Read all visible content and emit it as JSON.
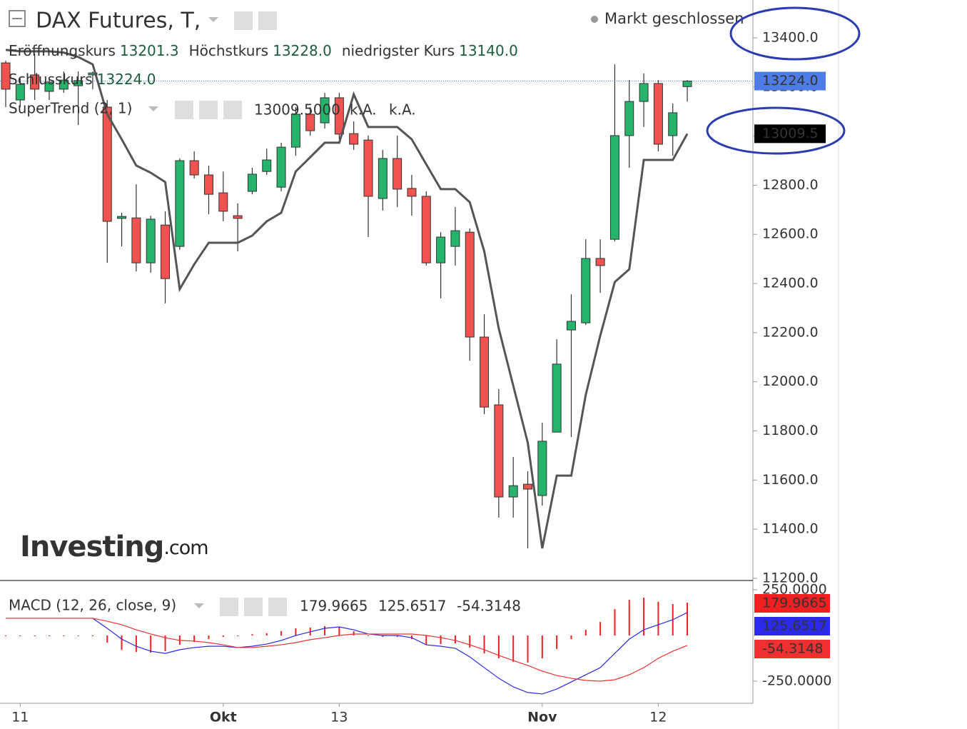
{
  "header": {
    "title": "DAX Futures, T,",
    "status": "Markt geschlossen",
    "ohlc": [
      {
        "label": "Eröffnungskurs",
        "value": "13201.3"
      },
      {
        "label": "Höchstkurs",
        "value": "13228.0"
      },
      {
        "label": "niedrigster Kurs",
        "value": "13140.0"
      },
      {
        "label": "Schlusskurs",
        "value": "13224.0"
      }
    ],
    "logo": {
      "brand": "Investing",
      "suffix": ".com"
    }
  },
  "chart_data": [
    {
      "type": "candlestick",
      "categories": [
        null,
        "11",
        null,
        null,
        null,
        null,
        null,
        null,
        null,
        null,
        null,
        null,
        null,
        null,
        null,
        "Okt",
        null,
        null,
        null,
        null,
        null,
        null,
        null,
        "13",
        null,
        null,
        null,
        null,
        null,
        null,
        null,
        null,
        null,
        null,
        null,
        null,
        null,
        "Nov",
        null,
        null,
        null,
        null,
        null,
        null,
        null,
        "12",
        null,
        null
      ],
      "open": [
        13298,
        13147,
        13249,
        13182,
        13191,
        13205,
        13249,
        13118,
        12665,
        12667,
        12484,
        12638,
        12551,
        12900,
        12842,
        12769,
        12676,
        12775,
        12856,
        12792,
        12955,
        13089,
        13054,
        13156,
        13010,
        12984,
        12746,
        12909,
        12787,
        12755,
        12484,
        12551,
        12609,
        12182,
        11906,
        11531,
        11583,
        11537,
        11795,
        12211,
        12240,
        12502,
        12580,
        13002,
        13141,
        13214,
        13002,
        13201.3
      ],
      "high": [
        13307,
        13234,
        13336,
        13240,
        13263,
        13263,
        13263,
        13147,
        12688,
        12804,
        12676,
        12694,
        12909,
        12938,
        12880,
        12856,
        12726,
        12871,
        12949,
        12973,
        13118,
        13118,
        13176,
        13176,
        13060,
        13002,
        12944,
        13002,
        12842,
        12775,
        12609,
        12711,
        12624,
        12275,
        11970,
        11694,
        11636,
        11833,
        12173,
        12356,
        12580,
        12580,
        13292,
        13228,
        13255,
        13228,
        13133,
        13228
      ],
      "low": [
        13118,
        13118,
        13147,
        13147,
        13176,
        13045,
        13191,
        12484,
        12551,
        12449,
        12444,
        12319,
        12537,
        12827,
        12682,
        12653,
        12531,
        12763,
        12842,
        12775,
        12920,
        13002,
        13031,
        12987,
        12944,
        12589,
        12697,
        12711,
        12676,
        12473,
        12339,
        12473,
        12086,
        11868,
        11447,
        11447,
        11322,
        11496,
        11795,
        11775,
        12231,
        12362,
        12571,
        12871,
        13037,
        12938,
        12920,
        13140
      ],
      "close": [
        13191,
        13211,
        13191,
        13220,
        13228,
        13226,
        13257,
        12653,
        12673,
        12484,
        12662,
        12420,
        12900,
        12842,
        12763,
        12694,
        12665,
        12845,
        12903,
        12955,
        13089,
        13022,
        13156,
        13008,
        12967,
        12755,
        12909,
        12784,
        12755,
        12484,
        12589,
        12615,
        12182,
        11897,
        11531,
        11577,
        11563,
        11758,
        12072,
        12246,
        12502,
        12473,
        13002,
        13141,
        13214,
        12967,
        13095,
        13224
      ],
      "up_color": "#26b36b",
      "down_color": "#f0524f",
      "indicator": {
        "name": "SuperTrend (2, 1)",
        "readout": [
          "13009.5000",
          "k.A.",
          "k.A."
        ],
        "badge_label": "13009.5",
        "color": "#555555",
        "values": [
          13351,
          13345,
          13345,
          13345,
          13340,
          13322,
          13292,
          13089,
          12987,
          12880,
          12851,
          12813,
          12377,
          12478,
          12566,
          12566,
          12566,
          12595,
          12653,
          12688,
          12856,
          12914,
          12973,
          12973,
          13170,
          13037,
          13037,
          13037,
          12987,
          12885,
          12784,
          12784,
          12731,
          12531,
          12217,
          11984,
          11752,
          11322,
          11618,
          11618,
          11947,
          12188,
          12406,
          12458,
          12903,
          12903,
          12903,
          13009.5
        ]
      },
      "close_color": "#4d7be8",
      "ylim": [
        11194,
        13554
      ],
      "yticks": [
        {
          "value": 13400,
          "label": "13400.0"
        },
        {
          "value": 13200,
          "label": "13200.0"
        },
        {
          "value": 13000,
          "label": "13000.0"
        },
        {
          "value": 12800,
          "label": "12800.0"
        },
        {
          "value": 12600,
          "label": "12600.0"
        },
        {
          "value": 12400,
          "label": "12400.0"
        },
        {
          "value": 12200,
          "label": "12200.0"
        },
        {
          "value": 12000,
          "label": "12000.0"
        },
        {
          "value": 11800,
          "label": "11800.0"
        },
        {
          "value": 11600,
          "label": "11600.0"
        },
        {
          "value": 11400,
          "label": "11400.0"
        },
        {
          "value": 11200,
          "label": "11200.0"
        }
      ]
    },
    {
      "type": "macd",
      "title": "MACD (12, 26, close, 9)",
      "series": [
        {
          "kind": "histogram",
          "color": "#f02020",
          "readout": "179.9665",
          "values": [
            0,
            0,
            -3,
            -3,
            -3,
            -3,
            0,
            -39,
            -79,
            -90,
            -94,
            -86,
            -51,
            -35,
            -20,
            -8,
            0,
            7,
            12,
            24,
            39,
            43,
            51,
            47,
            23,
            0,
            -8,
            -8,
            -20,
            -51,
            -47,
            -43,
            -66,
            -98,
            -125,
            -144,
            -148,
            -125,
            -74,
            -20,
            31,
            74,
            144,
            195,
            207,
            184,
            172,
            179.9665
          ]
        },
        {
          "kind": "line",
          "color": "#2a2ae8",
          "readout": "125.6517",
          "values": [
            94,
            94,
            94,
            94,
            94,
            94,
            94,
            39,
            -20,
            -59,
            -86,
            -98,
            -78,
            -66,
            -59,
            -59,
            -66,
            -59,
            -47,
            -27,
            0,
            20,
            39,
            47,
            31,
            8,
            0,
            0,
            -12,
            -51,
            -59,
            -70,
            -117,
            -176,
            -234,
            -281,
            -312,
            -320,
            -293,
            -254,
            -215,
            -176,
            -98,
            -20,
            31,
            59,
            86,
            125.6517
          ]
        },
        {
          "kind": "line",
          "color": "#f03030",
          "readout": "-54.3148",
          "values": [
            94,
            94,
            94,
            94,
            94,
            94,
            94,
            78,
            59,
            31,
            8,
            -12,
            -27,
            -31,
            -39,
            -51,
            -66,
            -66,
            -59,
            -51,
            -39,
            -23,
            -12,
            0,
            8,
            8,
            8,
            8,
            8,
            0,
            -12,
            -27,
            -51,
            -78,
            -109,
            -137,
            -164,
            -195,
            -219,
            -234,
            -246,
            -250,
            -242,
            -215,
            -176,
            -125,
            -86,
            -54.3148
          ]
        }
      ],
      "ylim": [
        -371,
        293
      ],
      "yticks": [
        {
          "value": 250,
          "label": "250.0000"
        },
        {
          "value": -250,
          "label": "-250.0000"
        }
      ]
    }
  ]
}
